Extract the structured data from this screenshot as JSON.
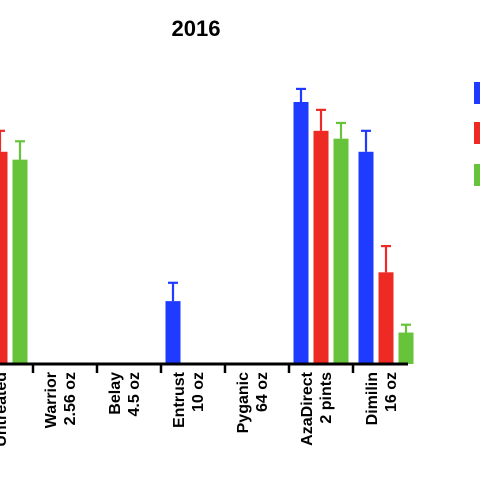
{
  "chart_data": {
    "type": "bar",
    "title": "2016",
    "xlabel": "",
    "ylabel": "",
    "ylim": [
      0,
      100
    ],
    "grid": false,
    "legend": {
      "placement": "right",
      "entries_visible": false
    },
    "categories": [
      [
        "Untreated"
      ],
      [
        "Warrior",
        "2.56 oz"
      ],
      [
        "Belay",
        "4.5 oz"
      ],
      [
        "Entrust",
        "10 oz"
      ],
      [
        "Pyganic",
        "64 oz"
      ],
      [
        "AzaDirect",
        "2 pints"
      ],
      [
        "Dimilin",
        "16 oz"
      ]
    ],
    "series": [
      {
        "color": "#1f3bff",
        "values": [
          null,
          0,
          0,
          24,
          0,
          100,
          81
        ],
        "errors": [
          null,
          0,
          0,
          7,
          0,
          5,
          8
        ]
      },
      {
        "color": "#ee2a24",
        "values": [
          81,
          0,
          0,
          0,
          0,
          89,
          35
        ],
        "errors": [
          8,
          0,
          0,
          0,
          0,
          8,
          10
        ]
      },
      {
        "color": "#66c33a",
        "values": [
          78,
          0,
          0,
          0,
          0,
          86,
          12
        ],
        "errors": [
          7,
          0,
          0,
          0,
          0,
          6,
          3
        ]
      }
    ]
  }
}
